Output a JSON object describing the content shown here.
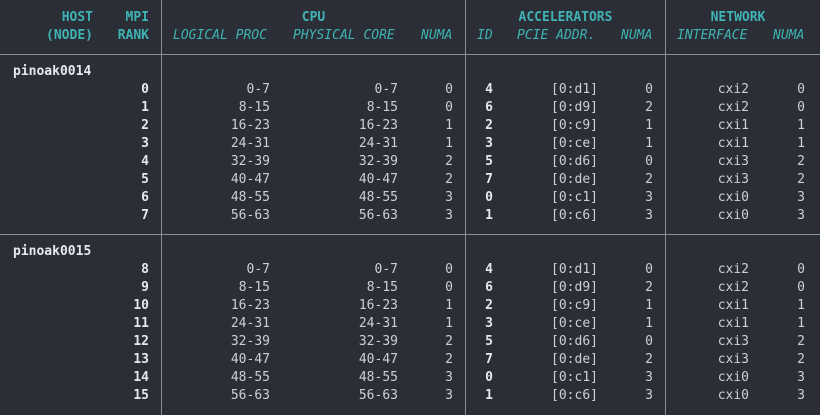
{
  "headers": {
    "host": "HOST",
    "host_sub": "(NODE)",
    "mpi": "MPI",
    "mpi_sub": "RANK",
    "cpu": "CPU",
    "accelerators": "ACCELERATORS",
    "network": "NETWORK"
  },
  "subheaders": {
    "logical_proc": "LOGICAL PROC",
    "physical_core": "PHYSICAL CORE",
    "cpu_numa": "NUMA",
    "id": "ID",
    "pcie_addr": "PCIE ADDR.",
    "acc_numa": "NUMA",
    "interface": "INTERFACE",
    "net_numa": "NUMA"
  },
  "nodes": [
    {
      "name": "pinoak0014",
      "rows": [
        {
          "rank": "0",
          "logical": "0-7",
          "physical": "0-7",
          "cpu_numa": "0",
          "acc_id": "4",
          "pcie": "[0:d1]",
          "acc_numa": "0",
          "iface": "cxi2",
          "net_numa": "0"
        },
        {
          "rank": "1",
          "logical": "8-15",
          "physical": "8-15",
          "cpu_numa": "0",
          "acc_id": "6",
          "pcie": "[0:d9]",
          "acc_numa": "2",
          "iface": "cxi2",
          "net_numa": "0"
        },
        {
          "rank": "2",
          "logical": "16-23",
          "physical": "16-23",
          "cpu_numa": "1",
          "acc_id": "2",
          "pcie": "[0:c9]",
          "acc_numa": "1",
          "iface": "cxi1",
          "net_numa": "1"
        },
        {
          "rank": "3",
          "logical": "24-31",
          "physical": "24-31",
          "cpu_numa": "1",
          "acc_id": "3",
          "pcie": "[0:ce]",
          "acc_numa": "1",
          "iface": "cxi1",
          "net_numa": "1"
        },
        {
          "rank": "4",
          "logical": "32-39",
          "physical": "32-39",
          "cpu_numa": "2",
          "acc_id": "5",
          "pcie": "[0:d6]",
          "acc_numa": "0",
          "iface": "cxi3",
          "net_numa": "2"
        },
        {
          "rank": "5",
          "logical": "40-47",
          "physical": "40-47",
          "cpu_numa": "2",
          "acc_id": "7",
          "pcie": "[0:de]",
          "acc_numa": "2",
          "iface": "cxi3",
          "net_numa": "2"
        },
        {
          "rank": "6",
          "logical": "48-55",
          "physical": "48-55",
          "cpu_numa": "3",
          "acc_id": "0",
          "pcie": "[0:c1]",
          "acc_numa": "3",
          "iface": "cxi0",
          "net_numa": "3"
        },
        {
          "rank": "7",
          "logical": "56-63",
          "physical": "56-63",
          "cpu_numa": "3",
          "acc_id": "1",
          "pcie": "[0:c6]",
          "acc_numa": "3",
          "iface": "cxi0",
          "net_numa": "3"
        }
      ]
    },
    {
      "name": "pinoak0015",
      "rows": [
        {
          "rank": "8",
          "logical": "0-7",
          "physical": "0-7",
          "cpu_numa": "0",
          "acc_id": "4",
          "pcie": "[0:d1]",
          "acc_numa": "0",
          "iface": "cxi2",
          "net_numa": "0"
        },
        {
          "rank": "9",
          "logical": "8-15",
          "physical": "8-15",
          "cpu_numa": "0",
          "acc_id": "6",
          "pcie": "[0:d9]",
          "acc_numa": "2",
          "iface": "cxi2",
          "net_numa": "0"
        },
        {
          "rank": "10",
          "logical": "16-23",
          "physical": "16-23",
          "cpu_numa": "1",
          "acc_id": "2",
          "pcie": "[0:c9]",
          "acc_numa": "1",
          "iface": "cxi1",
          "net_numa": "1"
        },
        {
          "rank": "11",
          "logical": "24-31",
          "physical": "24-31",
          "cpu_numa": "1",
          "acc_id": "3",
          "pcie": "[0:ce]",
          "acc_numa": "1",
          "iface": "cxi1",
          "net_numa": "1"
        },
        {
          "rank": "12",
          "logical": "32-39",
          "physical": "32-39",
          "cpu_numa": "2",
          "acc_id": "5",
          "pcie": "[0:d6]",
          "acc_numa": "0",
          "iface": "cxi3",
          "net_numa": "2"
        },
        {
          "rank": "13",
          "logical": "40-47",
          "physical": "40-47",
          "cpu_numa": "2",
          "acc_id": "7",
          "pcie": "[0:de]",
          "acc_numa": "2",
          "iface": "cxi3",
          "net_numa": "2"
        },
        {
          "rank": "14",
          "logical": "48-55",
          "physical": "48-55",
          "cpu_numa": "3",
          "acc_id": "0",
          "pcie": "[0:c1]",
          "acc_numa": "3",
          "iface": "cxi0",
          "net_numa": "3"
        },
        {
          "rank": "15",
          "logical": "56-63",
          "physical": "56-63",
          "cpu_numa": "3",
          "acc_id": "1",
          "pcie": "[0:c6]",
          "acc_numa": "3",
          "iface": "cxi0",
          "net_numa": "3"
        }
      ]
    }
  ],
  "colors": {
    "background": "#2b2e36",
    "header": "#3fb3b3",
    "text": "#cdd0d6",
    "rule": "#8a8e96"
  }
}
